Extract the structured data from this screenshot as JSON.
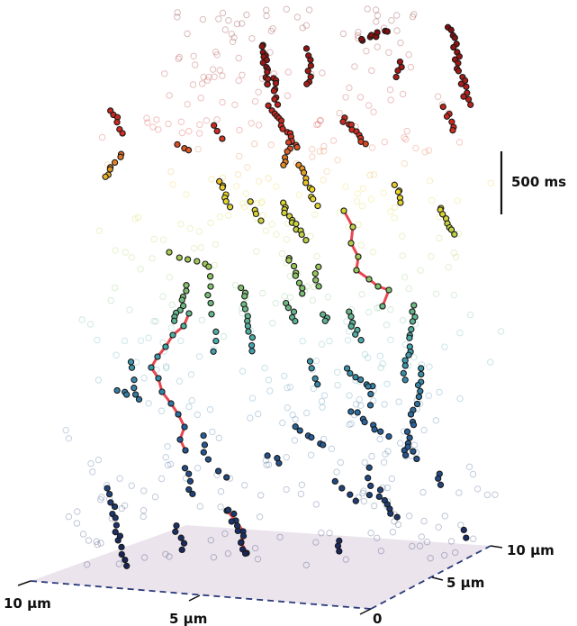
{
  "scale_bar": {
    "label": "500 ms"
  },
  "axes": {
    "x_left_label": "10 µm",
    "x_mid_label": "5 µm",
    "origin_label": "0",
    "y_mid_label": "5 µm",
    "y_end_label": "10 µm"
  },
  "colors": {
    "plane_fill": "#e8dfea",
    "axis_dash": "#2b3a7a",
    "track_highlight": "#e8474f"
  }
}
